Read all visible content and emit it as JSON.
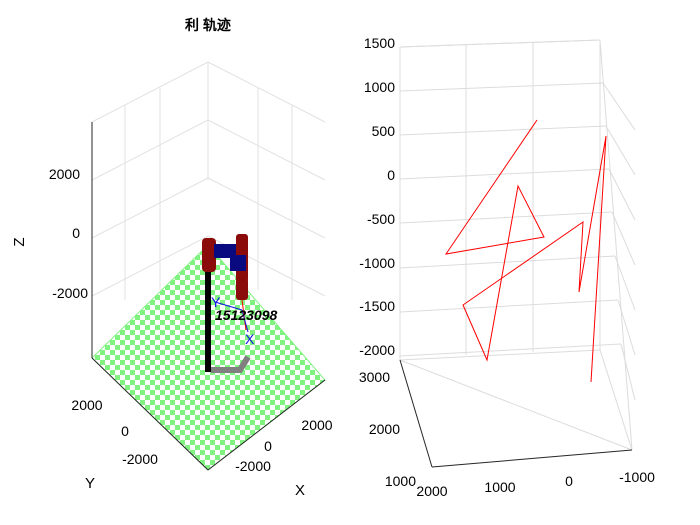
{
  "left_plot": {
    "title": "利 轨迹",
    "z_ticks": [
      "2000",
      "0",
      "-2000"
    ],
    "y_ticks": [
      "2000",
      "0",
      "-2000"
    ],
    "x_ticks": [
      "2000",
      "0",
      "-2000"
    ],
    "xlabel": "X",
    "ylabel": "Y",
    "zlabel": "Z",
    "robot_label": "15123098",
    "frame_axis_y": "Y",
    "frame_axis_x": "X",
    "colors": {
      "floor_checker": "#7ff27f",
      "robot_link": "#8b0a0a",
      "robot_joint": "#0a0a80",
      "base_post": "#000000",
      "frame_axes": "#1414e6",
      "trajectory": "#ff0000"
    }
  },
  "right_plot": {
    "z_ticks": [
      "1500",
      "1000",
      "500",
      "0",
      "-500",
      "-1000",
      "-1500",
      "-2000"
    ],
    "y_ticks": [
      "3000",
      "2000",
      "1000"
    ],
    "x_ticks": [
      "2000",
      "1000",
      "0",
      "-1000"
    ],
    "colors": {
      "trajectory": "#ff0000",
      "grid": "#dcdcdc"
    }
  }
}
